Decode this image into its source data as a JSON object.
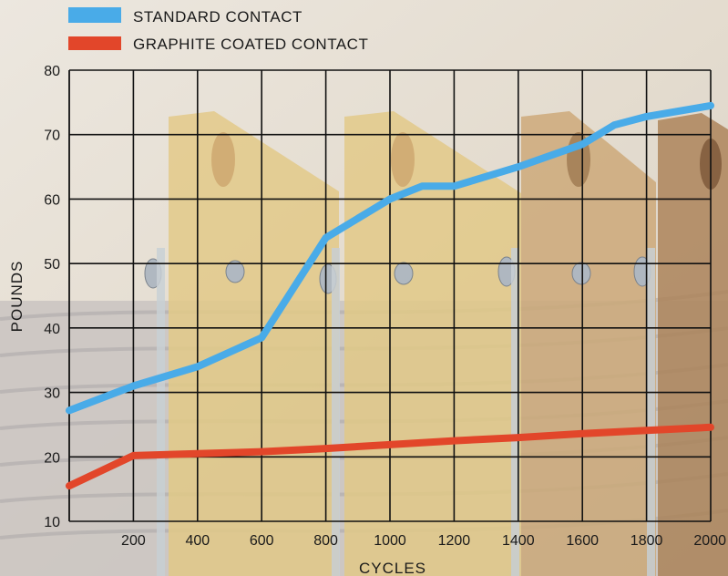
{
  "chart_data": {
    "type": "line",
    "xlabel": "CYCLES",
    "ylabel": "POUNDS",
    "xlim": [
      0,
      2000
    ],
    "ylim": [
      10,
      80
    ],
    "x_ticks": [
      200,
      400,
      600,
      800,
      1000,
      1200,
      1400,
      1600,
      1800,
      2000
    ],
    "y_ticks": [
      10,
      20,
      30,
      40,
      50,
      60,
      70,
      80
    ],
    "grid": true,
    "legend_position": "top-left",
    "series": [
      {
        "name": "STANDARD CONTACT",
        "color": "#49abe8",
        "points": [
          [
            0,
            27.2
          ],
          [
            200,
            31
          ],
          [
            400,
            34
          ],
          [
            600,
            38.5
          ],
          [
            800,
            54
          ],
          [
            1000,
            60
          ],
          [
            1100,
            62
          ],
          [
            1200,
            62
          ],
          [
            1400,
            65
          ],
          [
            1600,
            68.5
          ],
          [
            1700,
            71.5
          ],
          [
            1800,
            72.8
          ],
          [
            2000,
            74.5
          ]
        ]
      },
      {
        "name": "GRAPHITE COATED CONTACT",
        "color": "#e2462a",
        "points": [
          [
            0,
            15.5
          ],
          [
            200,
            20.2
          ],
          [
            400,
            20.5
          ],
          [
            600,
            20.8
          ],
          [
            800,
            21.3
          ],
          [
            1000,
            21.9
          ],
          [
            1200,
            22.5
          ],
          [
            1400,
            23
          ],
          [
            1600,
            23.6
          ],
          [
            1800,
            24.1
          ],
          [
            2000,
            24.6
          ]
        ]
      }
    ]
  }
}
